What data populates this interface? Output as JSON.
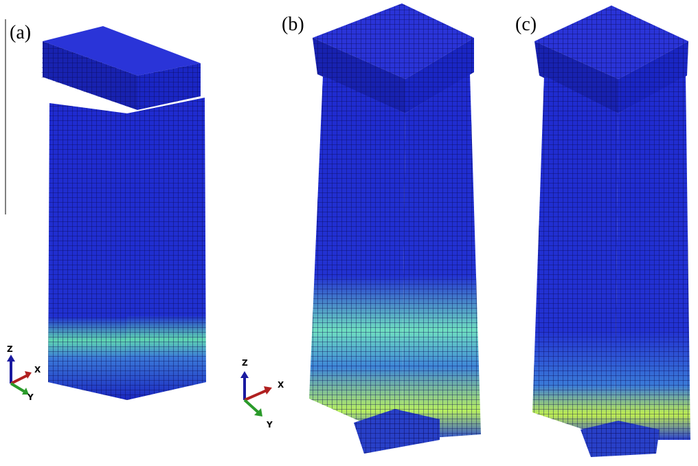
{
  "panels": [
    {
      "label": "(a)",
      "axes": {
        "z": "Z",
        "x": "X",
        "y": "Y"
      }
    },
    {
      "label": "(b)",
      "axes": {
        "z": "Z",
        "x": "X",
        "y": "Y"
      }
    },
    {
      "label": "(c)"
    }
  ]
}
